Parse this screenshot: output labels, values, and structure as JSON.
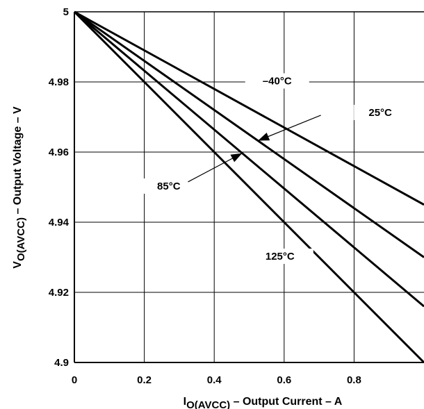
{
  "chart_data": {
    "type": "line",
    "xlabel": {
      "main": "I",
      "sub": "O(AVCC)",
      "rest": " – Output Current – A"
    },
    "ylabel": {
      "main": "V",
      "sub": "O(AVCC)",
      "rest": " – Output Voltage – V"
    },
    "xlim": [
      0,
      1.0
    ],
    "ylim": [
      4.9,
      5.0
    ],
    "x_ticks": [
      "0",
      "0.2",
      "0.4",
      "0.6",
      "0.8"
    ],
    "y_ticks": [
      "4.9",
      "4.92",
      "4.94",
      "4.96",
      "4.98",
      "5"
    ],
    "grid": true,
    "series": [
      {
        "name": "–40°C",
        "x": [
          0,
          1.0
        ],
        "y": [
          5.0,
          4.945
        ]
      },
      {
        "name": "25°C",
        "x": [
          0,
          1.0
        ],
        "y": [
          5.0,
          4.93
        ]
      },
      {
        "name": "85°C",
        "x": [
          0,
          1.0
        ],
        "y": [
          5.0,
          4.916
        ]
      },
      {
        "name": "125°C",
        "x": [
          0,
          1.0
        ],
        "y": [
          5.0,
          4.9
        ]
      }
    ],
    "annotations": [
      {
        "text": "–40°C",
        "series": "–40°C"
      },
      {
        "text": "25°C",
        "series": "25°C"
      },
      {
        "text": "85°C",
        "series": "85°C"
      },
      {
        "text": "125°C",
        "series": "125°C"
      }
    ]
  }
}
